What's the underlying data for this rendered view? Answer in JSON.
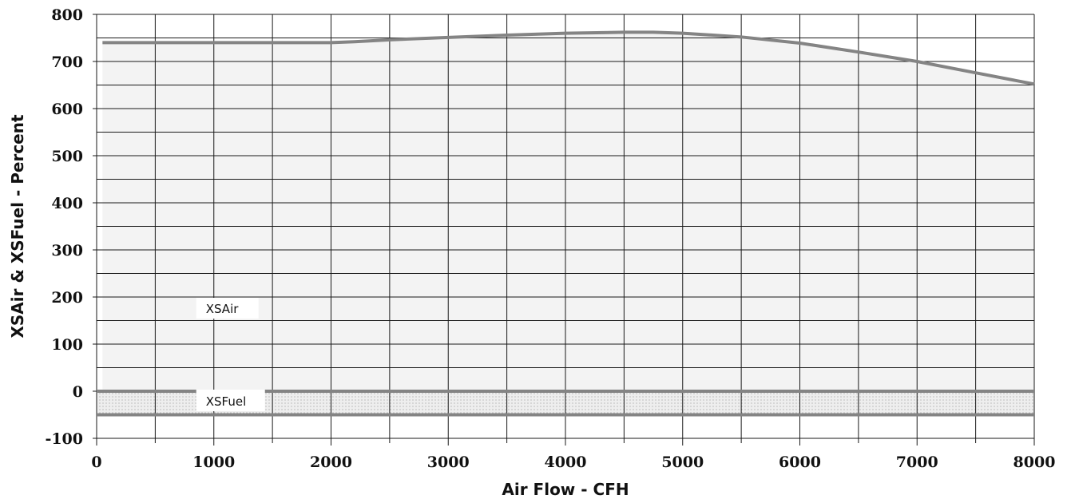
{
  "chart_data": {
    "type": "area",
    "title": "",
    "xlabel": "Air Flow - CFH",
    "ylabel": "XSAir & XSFuel - Percent",
    "xlim": [
      0,
      8000
    ],
    "ylim": [
      -100,
      800
    ],
    "x_ticks": [
      "0",
      "1000",
      "2000",
      "3000",
      "4000",
      "5000",
      "6000",
      "7000",
      "8000"
    ],
    "y_ticks": [
      "800",
      "700",
      "600",
      "500",
      "400",
      "300",
      "200",
      "100",
      "0",
      "-100"
    ],
    "grid": true,
    "series": [
      {
        "name": "XSAir",
        "x": [
          50,
          500,
          1000,
          1500,
          2000,
          2200,
          2500,
          3000,
          3500,
          4000,
          4500,
          4750,
          5000,
          5500,
          6000,
          6500,
          7000,
          7500,
          8000
        ],
        "y": [
          740,
          740,
          740,
          740,
          740,
          742,
          746,
          751,
          756,
          760,
          762,
          762,
          760,
          752,
          739,
          720,
          700,
          676,
          652
        ],
        "label": "XSAir"
      },
      {
        "name": "XSFuel",
        "x": [
          0,
          8000
        ],
        "y_upper": [
          0,
          0
        ],
        "y_lower": [
          -50,
          -50
        ],
        "label": "XSFuel"
      }
    ],
    "colors": {
      "line": "#848484",
      "xsair_fill": "#f3f3f3",
      "xsfuel_fill": "#e6e6e6",
      "grid": "#1a1a1a"
    }
  }
}
